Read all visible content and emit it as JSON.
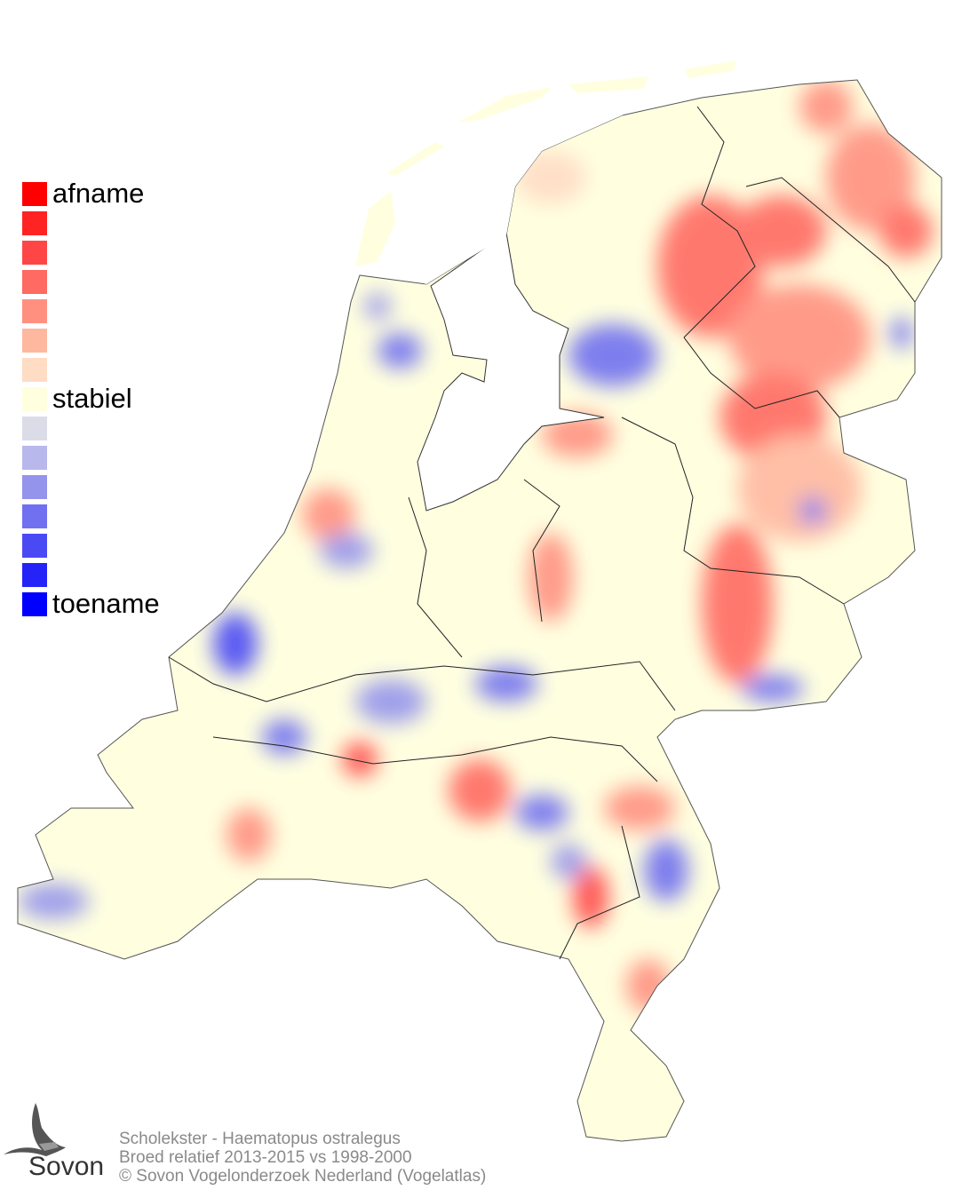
{
  "legend": {
    "items": [
      {
        "color": "#ff0000",
        "label": "afname"
      },
      {
        "color": "#ff2424",
        "label": ""
      },
      {
        "color": "#ff4646",
        "label": ""
      },
      {
        "color": "#ff6a62",
        "label": ""
      },
      {
        "color": "#ff9080",
        "label": ""
      },
      {
        "color": "#ffb8a0",
        "label": ""
      },
      {
        "color": "#ffdcc4",
        "label": ""
      },
      {
        "color": "#ffffe0",
        "label": "stabiel"
      },
      {
        "color": "#dcdce8",
        "label": ""
      },
      {
        "color": "#b8b8ec",
        "label": ""
      },
      {
        "color": "#9494ec",
        "label": ""
      },
      {
        "color": "#7070f0",
        "label": ""
      },
      {
        "color": "#4a4af4",
        "label": ""
      },
      {
        "color": "#2424f8",
        "label": ""
      },
      {
        "color": "#0000ff",
        "label": "toename"
      }
    ]
  },
  "credits": {
    "species": "Scholekster - Haematopus ostralegus",
    "period": "Broed relatief 2013-2015 vs 1998-2000",
    "copyright": "© Sovon Vogelonderzoek Nederland (Vogelatlas)"
  },
  "logo": {
    "text": "Sovon"
  }
}
